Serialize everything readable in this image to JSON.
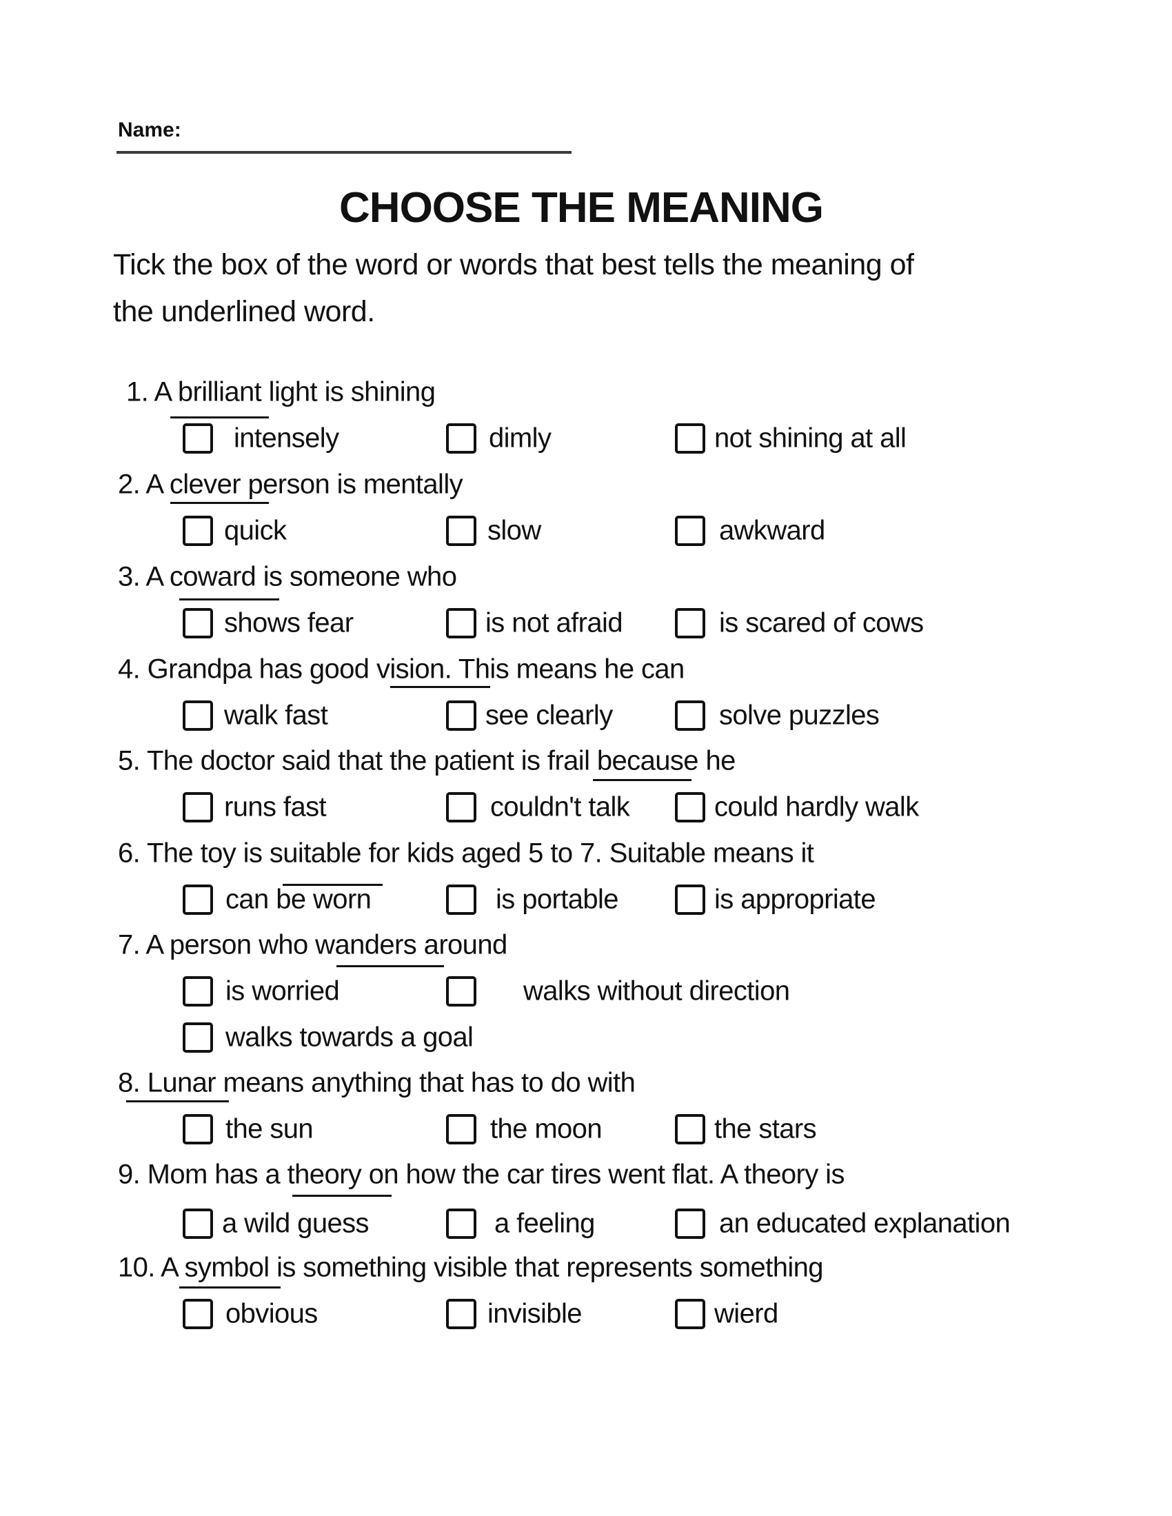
{
  "header": {
    "name_label": "Name:",
    "title": "CHOOSE THE MEANING",
    "instructions": [
      "Tick the box of the word or words that best tells the meaning of",
      "the underlined word."
    ]
  },
  "questions": [
    {
      "text": "1. A brilliant light is shining",
      "underlined": "brilliant",
      "options": [
        "intensely",
        "dimly",
        "not shining at all"
      ]
    },
    {
      "text": "2. A clever person is  mentally",
      "underlined": "clever",
      "options": [
        "quick",
        "slow",
        "awkward"
      ]
    },
    {
      "text": "3. A coward is someone who",
      "underlined": "coward",
      "options": [
        "shows fear",
        "is not afraid",
        "is scared of cows"
      ]
    },
    {
      "text": "4. Grandpa has good vision. This means he can",
      "underlined": "vision.",
      "options": [
        "walk fast",
        "see clearly",
        "solve puzzles"
      ]
    },
    {
      "text": "5. The doctor said that the patient is frail because he",
      "underlined": "frail",
      "options": [
        "runs fast",
        "couldn't talk",
        "could hardly walk"
      ]
    },
    {
      "text": "6. The toy is suitable for kids aged 5 to 7. Suitable means it",
      "underlined": "suitable",
      "options": [
        "can be worn",
        "is portable",
        "is appropriate"
      ]
    },
    {
      "text": "7. A person who wanders around",
      "underlined": "wanders",
      "options": [
        "is worried",
        "walks without direction",
        "walks towards a goal"
      ]
    },
    {
      "text": "8. Lunar means anything that has to do with",
      "underlined": "Lunar",
      "options": [
        "the sun",
        "the moon",
        "the stars"
      ]
    },
    {
      "text": "9. Mom has a theory on how the car tires went flat. A theory is",
      "underlined": "theory",
      "options": [
        "a wild guess",
        "a feeling",
        "an educated explanation"
      ]
    },
    {
      "text": "10. A symbol is something visible that represents something",
      "underlined": "symbol",
      "options": [
        "obvious",
        "invisible",
        "wierd"
      ]
    }
  ]
}
